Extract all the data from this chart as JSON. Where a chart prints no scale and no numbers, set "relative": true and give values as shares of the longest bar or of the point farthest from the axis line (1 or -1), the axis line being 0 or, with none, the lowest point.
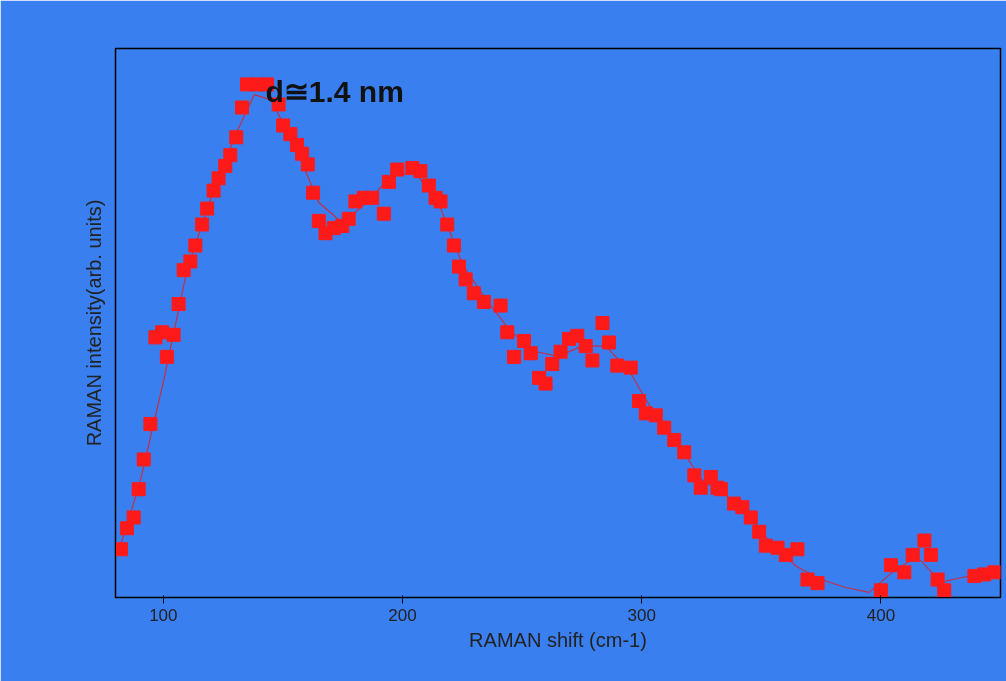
{
  "chart_data": {
    "type": "scatter",
    "relative": true,
    "xlabel": "RAMAN shift (cm-1)",
    "ylabel": "RAMAN intensity(arb. units)",
    "annotations": [
      "d≅1.4 nm"
    ],
    "xlim": [
      80,
      450
    ],
    "xticks": [
      100,
      200,
      300,
      400
    ],
    "grid": false,
    "marker": "square",
    "series": [
      {
        "type": "line",
        "color": "#c0304a",
        "line_style": "solid",
        "marker": "none",
        "x": [
          82,
          90,
          100,
          110,
          120,
          130,
          138,
          145,
          155,
          165,
          175,
          185,
          195,
          205,
          215,
          225,
          235,
          245,
          255,
          265,
          275,
          285,
          295,
          305,
          315,
          325,
          335,
          345,
          355,
          365,
          375,
          385,
          395,
          405,
          415,
          425,
          435,
          445
        ],
        "values": [
          0.1,
          0.22,
          0.42,
          0.64,
          0.78,
          0.9,
          0.98,
          0.97,
          0.88,
          0.77,
          0.73,
          0.77,
          0.82,
          0.83,
          0.77,
          0.65,
          0.58,
          0.52,
          0.48,
          0.47,
          0.49,
          0.49,
          0.44,
          0.36,
          0.3,
          0.23,
          0.2,
          0.16,
          0.1,
          0.06,
          0.035,
          0.02,
          0.01,
          0.05,
          0.08,
          0.03,
          0.04,
          0.045
        ]
      },
      {
        "color": "#ff1a1a",
        "x": [
          82.3,
          84.8,
          87.6,
          89.7,
          91.8,
          94.6,
          96.7,
          99.5,
          101.5,
          104.3,
          106.4,
          108.5,
          111.3,
          113.4,
          116.2,
          118.3,
          121.0,
          123.1,
          125.9,
          128.0,
          130.5,
          132.9,
          135.0,
          139.2,
          143.4,
          148.2,
          150.1,
          153.1,
          155.9,
          158.0,
          160.4,
          162.6,
          165.0,
          167.8,
          171.3,
          174.8,
          177.5,
          180.3,
          183.8,
          187.3,
          192.2,
          194.3,
          197.8,
          204.1,
          207.5,
          211.0,
          213.8,
          215.9,
          218.7,
          221.5,
          223.6,
          226.4,
          229.8,
          234.0,
          241.0,
          243.8,
          246.6,
          250.8,
          253.6,
          257.1,
          259.8,
          262.6,
          266.1,
          269.6,
          273.1,
          276.6,
          279.4,
          283.6,
          286.3,
          289.8,
          295.4,
          298.9,
          301.7,
          305.9,
          309.4,
          313.6,
          317.8,
          322.0,
          324.7,
          328.9,
          331.7,
          333.1,
          338.6,
          342.1,
          345.6,
          349.1,
          351.9,
          356.8,
          360.3,
          365.1,
          369.3,
          373.5,
          400.0,
          404.2,
          409.8,
          413.3,
          418.2,
          420.9,
          423.7,
          426.5,
          439.1,
          443.2,
          447.4
        ],
        "values": [
          0.094,
          0.135,
          0.156,
          0.211,
          0.269,
          0.338,
          0.507,
          0.517,
          0.469,
          0.512,
          0.572,
          0.638,
          0.655,
          0.686,
          0.727,
          0.758,
          0.793,
          0.817,
          0.841,
          0.862,
          0.897,
          0.955,
          1.0,
          1.0,
          1.0,
          0.961,
          0.92,
          0.903,
          0.882,
          0.865,
          0.844,
          0.789,
          0.734,
          0.71,
          0.72,
          0.724,
          0.738,
          0.772,
          0.779,
          0.779,
          0.748,
          0.81,
          0.834,
          0.837,
          0.831,
          0.803,
          0.779,
          0.772,
          0.727,
          0.686,
          0.645,
          0.62,
          0.593,
          0.576,
          0.569,
          0.517,
          0.469,
          0.5,
          0.476,
          0.428,
          0.417,
          0.455,
          0.479,
          0.504,
          0.51,
          0.49,
          0.462,
          0.535,
          0.497,
          0.452,
          0.448,
          0.383,
          0.359,
          0.355,
          0.331,
          0.307,
          0.283,
          0.238,
          0.214,
          0.235,
          0.214,
          0.211,
          0.183,
          0.176,
          0.156,
          0.128,
          0.101,
          0.097,
          0.083,
          0.094,
          0.035,
          0.028,
          0.014,
          0.063,
          0.049,
          0.083,
          0.111,
          0.083,
          0.035,
          0.014,
          0.042,
          0.045,
          0.049
        ]
      }
    ]
  }
}
